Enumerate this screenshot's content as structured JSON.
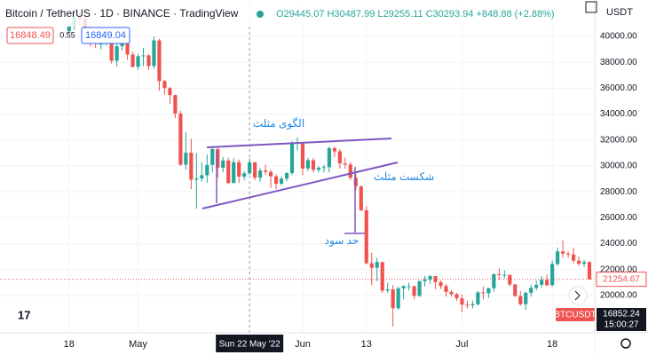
{
  "chart_data": {
    "type": "candlestick",
    "title": "Bitcoin / TetherUS · 1D · BINANCE · TradingView",
    "ohlc_legend": "O29445.07 H30487.99 L29255.11 C30293.94 +848.88 (+2.88%)",
    "currency": "USDT",
    "bid": "16848.49",
    "spread": "0.55",
    "ask": "16849.04",
    "symbol_tag": "BTCUSDT",
    "live_price": "16852.24",
    "countdown": "15:00:27",
    "last_price": 21254.67,
    "up_color": "#26a69a",
    "down_color": "#ef5350",
    "annotations": [
      "الگوی مثلث",
      "شکست مثلث",
      "حد سود"
    ],
    "x": [
      18,
      19,
      20,
      21,
      22,
      23,
      24,
      25,
      26,
      27,
      28,
      29,
      30,
      31,
      32,
      33,
      34,
      35,
      36,
      37,
      38,
      39,
      40,
      41,
      42,
      43,
      44,
      45,
      46,
      47,
      48,
      49,
      50,
      51,
      52,
      53,
      54,
      55,
      56,
      57,
      58,
      59,
      60,
      61,
      62,
      63,
      64,
      65,
      66,
      67,
      68,
      69,
      70,
      71,
      72,
      73,
      74,
      75,
      76,
      77,
      78,
      79,
      80,
      81,
      82,
      83,
      84,
      85,
      86,
      87,
      88,
      89,
      90,
      91,
      92,
      93,
      94,
      95,
      96,
      97,
      98,
      99,
      100,
      101,
      102,
      103,
      104,
      105,
      106,
      107,
      108,
      109,
      110,
      111,
      112,
      113,
      114,
      115,
      116
    ],
    "open": [
      40400,
      40800,
      41500,
      41360,
      40480,
      39700,
      39450,
      39450,
      40430,
      38120,
      39240,
      39740,
      38600,
      37650,
      38470,
      38530,
      37720,
      39690,
      36550,
      36010,
      35470,
      34040,
      30100,
      31020,
      28940,
      29030,
      29280,
      30080,
      31300,
      29860,
      30420,
      28680,
      30290,
      29180,
      29430,
      30280,
      29100,
      29650,
      29540,
      29200,
      28630,
      29020,
      29450,
      31720,
      31790,
      29800,
      30450,
      29700,
      29860,
      29910,
      31370,
      31130,
      30200,
      30110,
      29090,
      28420,
      26580,
      22490,
      22140,
      22580,
      20380,
      20470,
      19020,
      20550,
      20720,
      20720,
      19970,
      21110,
      21230,
      21500,
      21030,
      20730,
      20280,
      20100,
      19780,
      19300,
      19240,
      19320,
      20240,
      20180,
      20560,
      21640,
      21590,
      21590,
      20850,
      19960,
      19330,
      20210,
      20590,
      20830,
      21200,
      20800,
      22430,
      23400,
      23230,
      23160,
      22690,
      22450,
      22580
    ],
    "high": [
      41100,
      42200,
      41800,
      41500,
      40800,
      40000,
      39800,
      40600,
      40500,
      39400,
      40000,
      39900,
      38800,
      38650,
      39100,
      38650,
      40000,
      39800,
      36650,
      36100,
      35500,
      34250,
      32600,
      32100,
      31000,
      30300,
      30900,
      31400,
      31400,
      30700,
      30650,
      30600,
      30500,
      29600,
      30600,
      30300,
      29850,
      30100,
      29700,
      29350,
      29200,
      29500,
      31900,
      32200,
      31850,
      30650,
      30600,
      30000,
      30100,
      31500,
      31500,
      31300,
      30650,
      30300,
      29400,
      28500,
      26900,
      23300,
      22900,
      22600,
      21000,
      20800,
      20700,
      20800,
      21000,
      20750,
      21150,
      21500,
      21600,
      21500,
      21150,
      20900,
      20400,
      20200,
      20100,
      19600,
      19600,
      20350,
      20700,
      20600,
      21700,
      22100,
      21950,
      21600,
      20900,
      20350,
      20300,
      20850,
      21150,
      21500,
      21600,
      22700,
      23700,
      24250,
      23400,
      23700,
      23000,
      22750,
      22650
    ],
    "low": [
      40200,
      40500,
      40800,
      40200,
      39200,
      39100,
      39000,
      39300,
      37900,
      37700,
      38900,
      38200,
      37600,
      37400,
      37700,
      37400,
      37500,
      35800,
      35500,
      34800,
      33700,
      30000,
      29700,
      28200,
      26700,
      28800,
      28700,
      29500,
      29100,
      29500,
      28600,
      28700,
      28700,
      28900,
      29300,
      28900,
      28800,
      29300,
      28300,
      28200,
      28500,
      28800,
      29300,
      31200,
      29300,
      29600,
      29500,
      29500,
      29500,
      29500,
      30700,
      29800,
      29800,
      28900,
      28100,
      26500,
      22400,
      20800,
      21100,
      20200,
      20200,
      17600,
      18900,
      19700,
      20400,
      19700,
      19900,
      20700,
      20900,
      20500,
      20500,
      19900,
      19900,
      19600,
      18700,
      19000,
      19000,
      19200,
      19700,
      19800,
      20300,
      21200,
      21300,
      20700,
      19900,
      19200,
      18900,
      19900,
      20400,
      20600,
      20700,
      20700,
      22300,
      22900,
      22900,
      22500,
      22300,
      22200,
      21200
    ],
    "close": [
      40800,
      41500,
      41360,
      40480,
      39700,
      39450,
      39450,
      40430,
      38120,
      39240,
      39740,
      38600,
      37650,
      38470,
      38530,
      37720,
      39690,
      36550,
      36010,
      35470,
      34040,
      30100,
      31020,
      28940,
      29030,
      29280,
      30080,
      31300,
      29860,
      30420,
      28680,
      30290,
      29180,
      29430,
      30280,
      29100,
      29650,
      29540,
      29200,
      28630,
      29020,
      29450,
      31720,
      31790,
      29800,
      30450,
      29700,
      29860,
      29910,
      31370,
      31130,
      30200,
      30110,
      29090,
      28420,
      26580,
      22490,
      22140,
      22580,
      20380,
      20470,
      19020,
      20550,
      20720,
      20720,
      19970,
      21110,
      21230,
      21500,
      21030,
      20730,
      20280,
      20100,
      19780,
      19300,
      19240,
      19320,
      20240,
      20180,
      20560,
      21640,
      21590,
      21590,
      20850,
      19960,
      19330,
      20210,
      20590,
      20830,
      21200,
      20800,
      22430,
      23400,
      23230,
      23160,
      22690,
      22450,
      22580,
      21254.67
    ],
    "xlim": [
      5,
      117
    ],
    "xticks": [
      18,
      {
        "value": 31,
        "label": "May"
      },
      {
        "value": 62,
        "label": "Jun"
      },
      13,
      {
        "value": 92,
        "label": "Jul"
      },
      18
    ],
    "xtick_values": [
      18,
      31,
      62,
      74,
      92,
      109
    ],
    "crosshair": {
      "value": 52,
      "label": "Sun 22 May '22"
    },
    "ylim": [
      17120,
      42810
    ],
    "yticks": [
      {
        "value": 20000,
        "label": "20000.00"
      },
      {
        "value": 22000,
        "label": "22000.00"
      },
      {
        "value": 24000,
        "label": "24000.00"
      },
      {
        "value": 26000,
        "label": "26000.00"
      },
      {
        "value": 28000,
        "label": "28000.00"
      },
      {
        "value": 30000,
        "label": "30000.00"
      },
      {
        "value": 32000,
        "label": "32000.00"
      },
      {
        "value": 34000,
        "label": "34000.00"
      },
      {
        "value": 36000,
        "label": "36000.00"
      },
      {
        "value": 38000,
        "label": "38000.00"
      },
      {
        "value": 40000,
        "label": "40000.00"
      }
    ]
  }
}
